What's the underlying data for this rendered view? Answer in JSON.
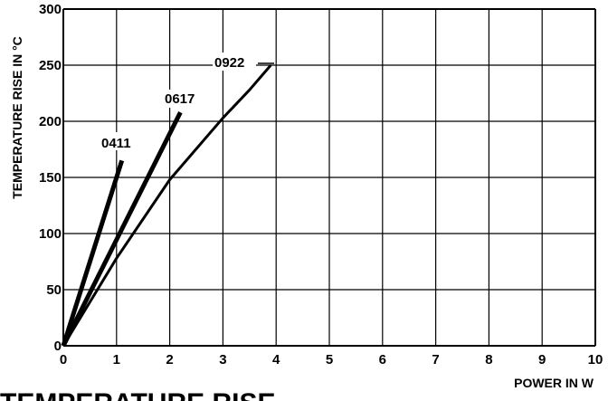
{
  "chart_data": {
    "type": "line",
    "title": "TEMPERATURE RISE",
    "xlabel": "POWER IN W",
    "ylabel": "TEMPERATURE RISE IN °C",
    "xlim": [
      0,
      10
    ],
    "ylim": [
      0,
      300
    ],
    "x_ticks": [
      0,
      1,
      2,
      3,
      4,
      5,
      6,
      7,
      8,
      9,
      10
    ],
    "y_ticks": [
      0,
      50,
      100,
      150,
      200,
      250,
      300
    ],
    "grid": true,
    "series": [
      {
        "name": "0411",
        "line_weight": "heavy",
        "points": [
          [
            0,
            0
          ],
          [
            1.1,
            165
          ]
        ]
      },
      {
        "name": "0617",
        "line_weight": "heavy",
        "points": [
          [
            0,
            0
          ],
          [
            2.2,
            208
          ]
        ]
      },
      {
        "name": "0922",
        "line_weight": "light",
        "points": [
          [
            0,
            0
          ],
          [
            1,
            78
          ],
          [
            2,
            148
          ],
          [
            3,
            203
          ],
          [
            3.5,
            228
          ],
          [
            3.9,
            250
          ]
        ]
      }
    ]
  }
}
